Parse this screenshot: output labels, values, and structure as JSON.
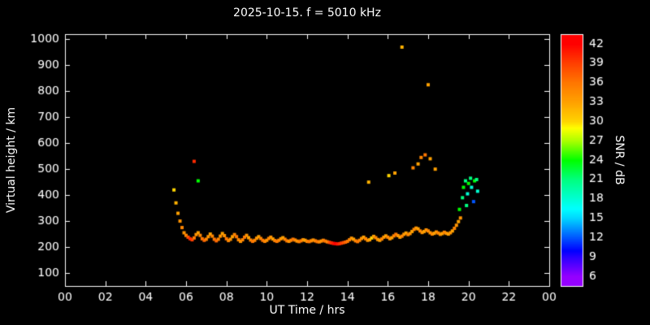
{
  "colors": {
    "background": "#000000",
    "foreground": "#ffffff"
  },
  "chart_data": {
    "type": "scatter",
    "title": "2025-10-15. f = 5010 kHz",
    "xlabel": "UT Time / hrs",
    "ylabel": "Virtual height / km",
    "colorbar_label": "SNR / dB",
    "xlim": [
      0,
      24
    ],
    "ylim": [
      50,
      1020
    ],
    "xtick_values": [
      0,
      2,
      4,
      6,
      8,
      10,
      12,
      14,
      16,
      18,
      20,
      22,
      24
    ],
    "xtick_labels": [
      "00",
      "02",
      "04",
      "06",
      "08",
      "10",
      "12",
      "14",
      "16",
      "18",
      "20",
      "22",
      "00"
    ],
    "ytick_values": [
      100,
      200,
      300,
      400,
      500,
      600,
      700,
      800,
      900,
      1000
    ],
    "colorbar_ticks": [
      6,
      9,
      12,
      15,
      18,
      21,
      24,
      27,
      30,
      33,
      36,
      39,
      42
    ],
    "colorbar_range": [
      4.5,
      43.5
    ],
    "colormap_stops": [
      [
        6,
        275
      ],
      [
        9,
        250
      ],
      [
        12,
        220
      ],
      [
        15,
        190
      ],
      [
        18,
        170
      ],
      [
        21,
        150
      ],
      [
        24,
        120
      ],
      [
        27,
        80
      ],
      [
        30,
        50
      ],
      [
        33,
        38
      ],
      [
        36,
        28
      ],
      [
        39,
        15
      ],
      [
        42,
        0
      ]
    ],
    "legend_position": "right-colorbar",
    "grid": false,
    "main_trace": {
      "t0": 5.4,
      "dt": 0.1,
      "h": [
        420,
        370,
        330,
        300,
        275,
        255,
        245,
        238,
        232,
        228,
        235,
        248,
        255,
        245,
        232,
        226,
        230,
        240,
        250,
        242,
        230,
        224,
        230,
        242,
        252,
        244,
        232,
        225,
        230,
        240,
        248,
        240,
        228,
        222,
        228,
        238,
        245,
        236,
        227,
        222,
        226,
        234,
        240,
        233,
        226,
        222,
        226,
        233,
        238,
        231,
        225,
        222,
        226,
        232,
        236,
        230,
        224,
        222,
        226,
        230,
        227,
        223,
        221,
        224,
        228,
        226,
        222,
        221,
        224,
        227,
        224,
        221,
        220,
        223,
        226,
        223,
        220,
        218,
        216,
        214,
        213,
        212,
        213,
        215,
        217,
        219,
        222,
        228,
        234,
        230,
        224,
        221,
        226,
        233,
        238,
        232,
        226,
        228,
        235,
        241,
        236,
        229,
        226,
        231,
        238,
        243,
        238,
        232,
        236,
        243,
        249,
        244,
        238,
        242,
        249,
        254,
        248,
        252,
        260,
        268,
        273,
        270,
        262,
        256,
        260,
        266,
        262,
        255,
        250,
        253,
        258,
        254,
        249,
        252,
        257,
        253,
        250,
        255,
        262,
        272,
        284,
        298,
        312
      ],
      "snr": [
        30,
        32,
        33,
        34,
        35,
        34,
        35,
        38,
        40,
        39,
        36,
        34,
        33,
        35,
        36,
        37,
        35,
        34,
        33,
        35,
        36,
        37,
        35,
        34,
        33,
        34,
        36,
        35,
        34,
        33,
        35,
        36,
        35,
        34,
        35,
        36,
        34,
        33,
        35,
        36,
        35,
        34,
        33,
        35,
        36,
        35,
        34,
        35,
        34,
        33,
        35,
        36,
        35,
        34,
        33,
        35,
        36,
        34,
        35,
        36,
        35,
        34,
        35,
        36,
        34,
        33,
        35,
        36,
        35,
        34,
        35,
        36,
        35,
        34,
        35,
        36,
        35,
        38,
        40,
        41,
        42,
        41,
        40,
        39,
        38,
        37,
        36,
        35,
        34,
        33,
        35,
        36,
        35,
        34,
        33,
        35,
        34,
        33,
        30,
        33,
        35,
        34,
        33,
        35,
        34,
        33,
        35,
        34,
        33,
        35,
        36,
        34,
        33,
        35,
        34,
        33,
        35,
        34,
        33,
        35,
        34,
        33,
        35,
        34,
        33,
        34,
        35,
        34,
        35,
        33,
        34,
        35,
        34,
        33,
        35,
        34,
        33,
        34,
        33,
        35,
        34,
        33,
        34
      ]
    },
    "scatter_points": [
      [
        6.4,
        530,
        40
      ],
      [
        6.6,
        455,
        24
      ],
      [
        15.05,
        450,
        32
      ],
      [
        16.05,
        475,
        30
      ],
      [
        16.35,
        485,
        33
      ],
      [
        16.7,
        970,
        32
      ],
      [
        17.25,
        505,
        35
      ],
      [
        17.5,
        520,
        33
      ],
      [
        17.65,
        545,
        35
      ],
      [
        17.85,
        555,
        36
      ],
      [
        18.0,
        825,
        33
      ],
      [
        18.1,
        540,
        33
      ],
      [
        18.35,
        500,
        33
      ],
      [
        19.55,
        345,
        24
      ],
      [
        19.7,
        390,
        21
      ],
      [
        19.75,
        430,
        24
      ],
      [
        19.85,
        455,
        21
      ],
      [
        19.9,
        360,
        21
      ],
      [
        19.95,
        405,
        18
      ],
      [
        20.0,
        445,
        24
      ],
      [
        20.1,
        465,
        21
      ],
      [
        20.15,
        430,
        18
      ],
      [
        20.25,
        375,
        12
      ],
      [
        20.3,
        455,
        24
      ],
      [
        20.4,
        460,
        21
      ],
      [
        20.45,
        415,
        18
      ]
    ]
  }
}
